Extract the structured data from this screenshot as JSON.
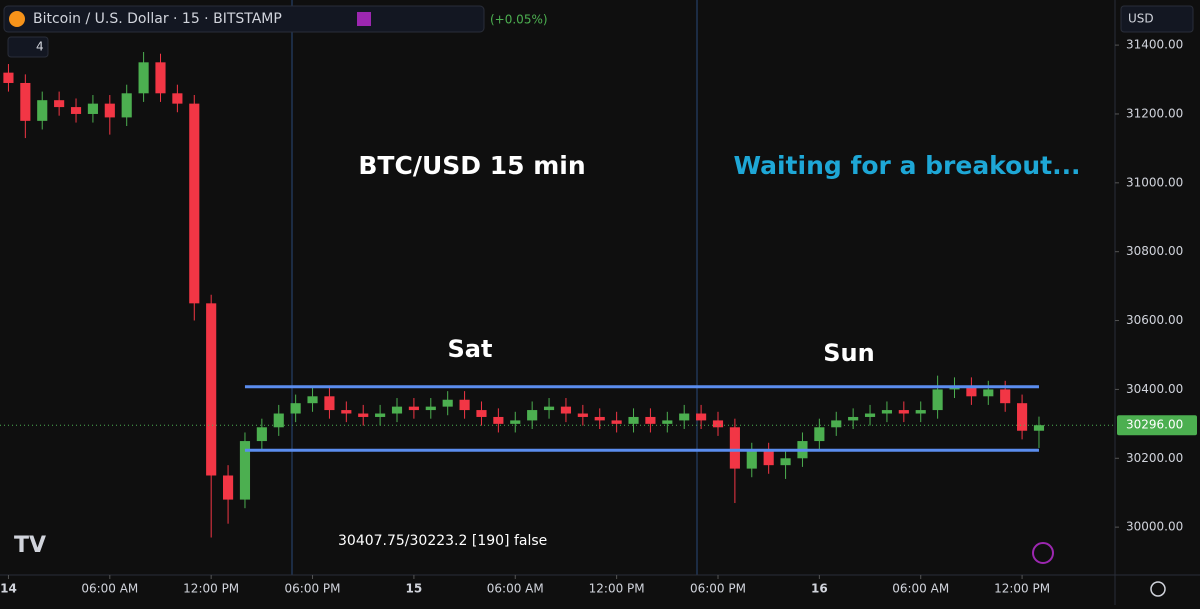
{
  "chart_data": {
    "type": "candlestick",
    "header": {
      "symbol": "Bitcoin / U.S. Dollar · 15 · BITSTAMP",
      "change": "(+0.05%)",
      "indicator_count": "4",
      "currency": "USD"
    },
    "annotations": [
      "BTC/USD 15 min",
      "Waiting for a breakout...",
      "Sat",
      "Sun"
    ],
    "indicator_text": "30407.75/30223.2 [190]  false",
    "levels": [
      30407.75,
      30223.2
    ],
    "levels_xlim": [
      14,
      61
    ],
    "levels_color": "#5b8def",
    "last_price": {
      "value": 30296,
      "label": "30296.00"
    },
    "up_color": "#4caf50",
    "down_color": "#f23645",
    "xlim": [
      -0.5,
      65.5
    ],
    "ylim": [
      29861,
      31531
    ],
    "xticks": [
      {
        "value": 0,
        "label": "14"
      },
      {
        "value": 6,
        "label": "06:00 AM"
      },
      {
        "value": 12,
        "label": "12:00 PM"
      },
      {
        "value": 18,
        "label": "06:00 PM"
      },
      {
        "value": 24,
        "label": "15"
      },
      {
        "value": 30,
        "label": "06:00 AM"
      },
      {
        "value": 36,
        "label": "12:00 PM"
      },
      {
        "value": 42,
        "label": "06:00 PM"
      },
      {
        "value": 48,
        "label": "16"
      },
      {
        "value": 54,
        "label": "06:00 AM"
      },
      {
        "value": 60,
        "label": "12:00 PM"
      }
    ],
    "yticks": [
      {
        "value": 30000,
        "label": "30000.00"
      },
      {
        "value": 30200,
        "label": "30200.00"
      },
      {
        "value": 30400,
        "label": "30400.00"
      },
      {
        "value": 30600,
        "label": "30600.00"
      },
      {
        "value": 30800,
        "label": "30800.00"
      },
      {
        "value": 31000,
        "label": "31000.00"
      },
      {
        "value": 31200,
        "label": "31200.00"
      },
      {
        "value": 31400,
        "label": "31400.00"
      }
    ],
    "x": [
      0,
      1,
      2,
      3,
      4,
      5,
      6,
      7,
      8,
      9,
      10,
      11,
      12,
      13,
      14,
      15,
      16,
      17,
      18,
      19,
      20,
      21,
      22,
      23,
      24,
      25,
      26,
      27,
      28,
      29,
      30,
      31,
      32,
      33,
      34,
      35,
      36,
      37,
      38,
      39,
      40,
      41,
      42,
      43,
      44,
      45,
      46,
      47,
      48,
      49,
      50,
      51,
      52,
      53,
      54,
      55,
      56,
      57,
      58,
      59,
      60,
      61
    ],
    "open": [
      31320,
      31290,
      31180,
      31240,
      31220,
      31200,
      31230,
      31190,
      31260,
      31350,
      31260,
      31230,
      30650,
      30150,
      30080,
      30250,
      30290,
      30330,
      30360,
      30380,
      30340,
      30330,
      30320,
      30330,
      30350,
      30340,
      30350,
      30370,
      30340,
      30320,
      30300,
      30310,
      30340,
      30350,
      30330,
      30320,
      30310,
      30300,
      30320,
      30300,
      30310,
      30330,
      30310,
      30290,
      30170,
      30220,
      30180,
      30200,
      30250,
      30290,
      30310,
      30320,
      30330,
      30340,
      30330,
      30340,
      30400,
      30410,
      30380,
      30400,
      30360,
      30280
    ],
    "high": [
      31345,
      31315,
      31265,
      31265,
      31245,
      31255,
      31255,
      31285,
      31380,
      31375,
      31285,
      31255,
      30675,
      30180,
      30275,
      30315,
      30355,
      30385,
      30405,
      30405,
      30365,
      30355,
      30355,
      30375,
      30375,
      30375,
      30395,
      30395,
      30365,
      30345,
      30335,
      30365,
      30375,
      30375,
      30355,
      30345,
      30335,
      30345,
      30345,
      30335,
      30355,
      30355,
      30335,
      30315,
      30245,
      30245,
      30225,
      30275,
      30315,
      30335,
      30345,
      30355,
      30365,
      30365,
      30365,
      30440,
      30435,
      30435,
      30425,
      30425,
      30385,
      30321
    ],
    "low": [
      31265,
      31130,
      31155,
      31195,
      31175,
      31175,
      31140,
      31165,
      31235,
      31235,
      31205,
      30600,
      29970,
      30010,
      30055,
      30225,
      30265,
      30305,
      30335,
      30315,
      30305,
      30295,
      30295,
      30305,
      30315,
      30315,
      30325,
      30315,
      30295,
      30275,
      30275,
      30285,
      30315,
      30305,
      30295,
      30285,
      30275,
      30275,
      30275,
      30275,
      30285,
      30285,
      30265,
      30070,
      30145,
      30155,
      30140,
      30175,
      30225,
      30265,
      30285,
      30295,
      30305,
      30305,
      30305,
      30315,
      30375,
      30355,
      30355,
      30335,
      30255,
      30230
    ],
    "close": [
      31290,
      31180,
      31240,
      31220,
      31200,
      31230,
      31190,
      31260,
      31350,
      31260,
      31230,
      30650,
      30150,
      30080,
      30250,
      30290,
      30330,
      30360,
      30380,
      30340,
      30330,
      30320,
      30330,
      30350,
      30340,
      30350,
      30370,
      30340,
      30320,
      30300,
      30310,
      30340,
      30350,
      30330,
      30320,
      30310,
      30300,
      30320,
      30300,
      30310,
      30330,
      30310,
      30290,
      30170,
      30220,
      30180,
      30200,
      30250,
      30290,
      30310,
      30320,
      30330,
      30340,
      30330,
      30340,
      30400,
      30410,
      30380,
      30400,
      30360,
      30280,
      30296
    ]
  }
}
